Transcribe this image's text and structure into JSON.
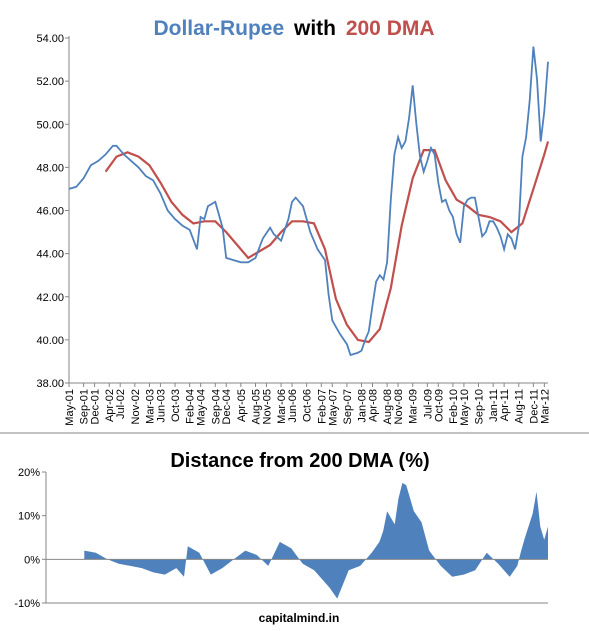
{
  "colors": {
    "rupee_line": "#4f81bd",
    "dma_line": "#c0504d",
    "distance_area": "#4f81bd",
    "title_part1": "#4f81bd",
    "title_part2": "#000000",
    "title_part3": "#c0504d",
    "axis": "#868686",
    "tick_text": "#000000",
    "background": "#ffffff"
  },
  "chart_data": [
    {
      "type": "line",
      "title_parts": [
        "Dollar-Rupee",
        "with",
        "200 DMA"
      ],
      "xlabel": "",
      "ylabel": "",
      "ylim": [
        38,
        54
      ],
      "yticks": [
        "38.00",
        "40.00",
        "42.00",
        "44.00",
        "46.00",
        "48.00",
        "50.00",
        "52.00",
        "54.00"
      ],
      "grid": false,
      "legend": "none",
      "date_range": [
        "2001-05",
        "2012-04"
      ],
      "x_tick_labels": [
        "May-01",
        "Sep-01",
        "Dec-01",
        "Apr-02",
        "Jul-02",
        "Nov-02",
        "Mar-03",
        "Jun-03",
        "Oct-03",
        "Feb-04",
        "May-04",
        "Sep-04",
        "Dec-04",
        "Apr-05",
        "Aug-05",
        "Nov-05",
        "Mar-06",
        "Jun-06",
        "Oct-06",
        "Feb-07",
        "May-07",
        "Sep-07",
        "Jan-08",
        "Apr-08",
        "Aug-08",
        "Nov-08",
        "Mar-09",
        "Jul-09",
        "Oct-09",
        "Feb-10",
        "May-10",
        "Sep-10",
        "Jan-11",
        "Apr-11",
        "Aug-11",
        "Dec-11",
        "Mar-12"
      ],
      "series": [
        {
          "key": "usdinr",
          "x": [
            "2001-05",
            "2001-07",
            "2001-09",
            "2001-11",
            "2002-01",
            "2002-03",
            "2002-05",
            "2002-06",
            "2002-08",
            "2002-10",
            "2002-12",
            "2003-02",
            "2003-04",
            "2003-06",
            "2003-08",
            "2003-10",
            "2003-12",
            "2004-02",
            "2004-04",
            "2004-05",
            "2004-06",
            "2004-07",
            "2004-09",
            "2004-11",
            "2004-12",
            "2005-02",
            "2005-04",
            "2005-06",
            "2005-08",
            "2005-10",
            "2005-12",
            "2006-01",
            "2006-03",
            "2006-05",
            "2006-06",
            "2006-07",
            "2006-09",
            "2006-11",
            "2007-01",
            "2007-03",
            "2007-04",
            "2007-05",
            "2007-07",
            "2007-09",
            "2007-10",
            "2007-12",
            "2008-01",
            "2008-02",
            "2008-03",
            "2008-04",
            "2008-05",
            "2008-06",
            "2008-07",
            "2008-08",
            "2008-09",
            "2008-10",
            "2008-11",
            "2008-12",
            "2009-01",
            "2009-02",
            "2009-03",
            "2009-04",
            "2009-05",
            "2009-06",
            "2009-07",
            "2009-08",
            "2009-09",
            "2009-10",
            "2009-11",
            "2009-12",
            "2010-01",
            "2010-02",
            "2010-03",
            "2010-04",
            "2010-05",
            "2010-06",
            "2010-07",
            "2010-08",
            "2010-09",
            "2010-10",
            "2010-11",
            "2010-12",
            "2011-01",
            "2011-02",
            "2011-03",
            "2011-04",
            "2011-05",
            "2011-06",
            "2011-07",
            "2011-08",
            "2011-09",
            "2011-10",
            "2011-11",
            "2011-12",
            "2012-01",
            "2012-02",
            "2012-03",
            "2012-04"
          ],
          "values": [
            47.0,
            47.1,
            47.5,
            48.1,
            48.3,
            48.6,
            49.0,
            49.0,
            48.6,
            48.3,
            48.0,
            47.6,
            47.4,
            46.8,
            46.0,
            45.6,
            45.3,
            45.1,
            44.2,
            45.7,
            45.6,
            46.2,
            46.4,
            45.2,
            43.8,
            43.7,
            43.6,
            43.6,
            43.8,
            44.7,
            45.2,
            44.9,
            44.6,
            45.6,
            46.4,
            46.6,
            46.2,
            45.0,
            44.2,
            43.7,
            42.1,
            40.9,
            40.3,
            39.8,
            39.3,
            39.4,
            39.5,
            40.0,
            40.4,
            41.6,
            42.7,
            43.0,
            42.8,
            43.6,
            46.5,
            48.6,
            49.4,
            48.9,
            49.2,
            50.3,
            51.8,
            50.0,
            48.5,
            47.8,
            48.3,
            48.9,
            48.6,
            47.3,
            46.4,
            46.5,
            46.0,
            45.7,
            44.9,
            44.5,
            46.2,
            46.5,
            46.6,
            46.6,
            45.7,
            44.8,
            45.0,
            45.5,
            45.5,
            45.2,
            44.8,
            44.2,
            44.9,
            44.7,
            44.2,
            45.2,
            48.5,
            49.4,
            51.1,
            53.6,
            52.1,
            49.2,
            50.6,
            52.9
          ]
        },
        {
          "key": "dma200",
          "x": [
            "2002-03",
            "2002-06",
            "2002-09",
            "2002-12",
            "2003-03",
            "2003-06",
            "2003-09",
            "2003-12",
            "2004-03",
            "2004-06",
            "2004-09",
            "2004-12",
            "2005-03",
            "2005-06",
            "2005-09",
            "2005-12",
            "2006-03",
            "2006-06",
            "2006-09",
            "2006-12",
            "2007-03",
            "2007-06",
            "2007-09",
            "2007-12",
            "2008-03",
            "2008-06",
            "2008-09",
            "2008-12",
            "2009-03",
            "2009-06",
            "2009-09",
            "2009-12",
            "2010-03",
            "2010-06",
            "2010-09",
            "2010-12",
            "2011-03",
            "2011-06",
            "2011-09",
            "2011-12",
            "2012-03",
            "2012-04"
          ],
          "values": [
            47.8,
            48.5,
            48.7,
            48.5,
            48.1,
            47.3,
            46.4,
            45.8,
            45.4,
            45.5,
            45.5,
            45.0,
            44.4,
            43.8,
            44.1,
            44.4,
            45.0,
            45.5,
            45.5,
            45.4,
            44.2,
            41.9,
            40.7,
            40.0,
            39.9,
            40.5,
            42.4,
            45.3,
            47.5,
            48.8,
            48.8,
            47.4,
            46.5,
            46.2,
            45.8,
            45.7,
            45.5,
            45.0,
            45.4,
            47.0,
            48.6,
            49.2
          ]
        }
      ]
    },
    {
      "type": "area",
      "title": "Distance from 200 DMA (%)",
      "xlabel": "",
      "ylabel": "",
      "ylim": [
        -10,
        20
      ],
      "yticks": [
        "-10%",
        "0%",
        "10%",
        "20%"
      ],
      "grid": false,
      "legend": "none",
      "x": [
        "2002-03",
        "2002-06",
        "2002-09",
        "2002-12",
        "2003-03",
        "2003-06",
        "2003-09",
        "2003-12",
        "2004-03",
        "2004-05",
        "2004-06",
        "2004-09",
        "2004-12",
        "2005-03",
        "2005-06",
        "2005-09",
        "2005-12",
        "2006-03",
        "2006-06",
        "2006-09",
        "2006-12",
        "2007-03",
        "2007-05",
        "2007-07",
        "2007-09",
        "2007-12",
        "2008-03",
        "2008-06",
        "2008-08",
        "2008-09",
        "2008-10",
        "2008-12",
        "2009-01",
        "2009-02",
        "2009-03",
        "2009-05",
        "2009-07",
        "2009-09",
        "2009-12",
        "2010-03",
        "2010-06",
        "2010-09",
        "2010-12",
        "2011-03",
        "2011-06",
        "2011-08",
        "2011-09",
        "2011-10",
        "2011-12",
        "2012-01",
        "2012-02",
        "2012-03",
        "2012-04"
      ],
      "values": [
        2.0,
        1.5,
        0,
        -1.0,
        -1.5,
        -2.0,
        -3.0,
        -3.5,
        -2.0,
        -4.0,
        3.0,
        1.5,
        -3.5,
        -2.0,
        0,
        2.0,
        1.0,
        -1.5,
        4.0,
        2.5,
        -1.0,
        -2.5,
        -4.5,
        -6.5,
        -9.0,
        -2.5,
        -1.5,
        1.5,
        4.0,
        6.5,
        11.0,
        8.0,
        14.0,
        17.5,
        17.0,
        11.0,
        8.5,
        2.0,
        -1.5,
        -4.0,
        -3.5,
        -2.5,
        1.5,
        -1.0,
        -4.0,
        -1.5,
        2.0,
        5.0,
        10.5,
        15.5,
        7.5,
        4.5,
        7.5
      ]
    }
  ],
  "footer": {
    "source_label": "capitalmind.in"
  }
}
